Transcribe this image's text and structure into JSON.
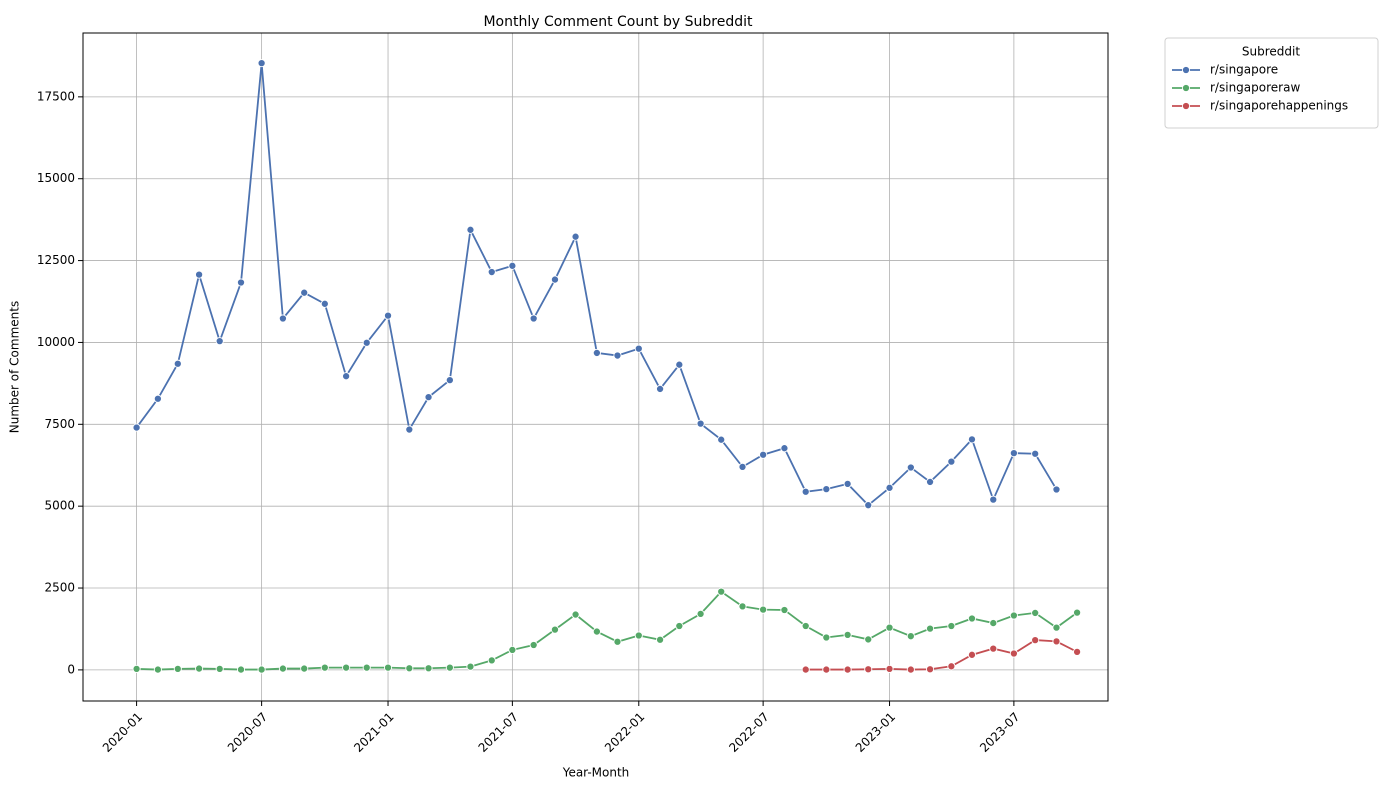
{
  "chart_data": {
    "type": "line",
    "title": "Monthly Comment Count by Subreddit",
    "xlabel": "Year-Month",
    "ylabel": "Number of Comments",
    "x_ticks": [
      "2020-01",
      "2020-07",
      "2021-01",
      "2021-07",
      "2022-01",
      "2022-07",
      "2023-01",
      "2023-07"
    ],
    "y_ticks": [
      0,
      2500,
      5000,
      7500,
      10000,
      12500,
      15000,
      17500
    ],
    "xlim": [
      "2019-10-15",
      "2023-11-15"
    ],
    "ylim": [
      -950,
      19450
    ],
    "grid": true,
    "legend": {
      "title": "Subreddit",
      "placement": "outside-top-right"
    },
    "series": [
      {
        "name": "r/singapore",
        "color": "#4c72b0",
        "start": "2020-01",
        "values": [
          7400,
          8280,
          9350,
          12070,
          10040,
          11830,
          18530,
          10730,
          11520,
          11180,
          8970,
          9990,
          10820,
          7340,
          8330,
          8850,
          13440,
          12150,
          12340,
          10730,
          11920,
          13230,
          9680,
          9600,
          9810,
          8580,
          9320,
          7520,
          7030,
          6200,
          6570,
          6770,
          5440,
          5520,
          5680,
          5030,
          5560,
          6180,
          5740,
          6360,
          7040,
          5200,
          6620,
          6600,
          5510
        ]
      },
      {
        "name": "r/singaporeraw",
        "color": "#55a868",
        "start": "2020-01",
        "values": [
          30,
          10,
          30,
          40,
          30,
          10,
          10,
          40,
          40,
          70,
          70,
          70,
          70,
          50,
          50,
          70,
          100,
          290,
          610,
          760,
          1230,
          1690,
          1170,
          860,
          1050,
          920,
          1340,
          1710,
          2390,
          1940,
          1840,
          1830,
          1340,
          990,
          1070,
          930,
          1290,
          1030,
          1260,
          1340,
          1570,
          1430,
          1660,
          1740,
          1290,
          1750
        ]
      },
      {
        "name": "r/singaporehappenings",
        "color": "#c44e52",
        "start": "2022-09",
        "values": [
          10,
          10,
          10,
          20,
          30,
          10,
          20,
          110,
          460,
          650,
          500,
          910,
          870,
          550
        ]
      }
    ]
  }
}
